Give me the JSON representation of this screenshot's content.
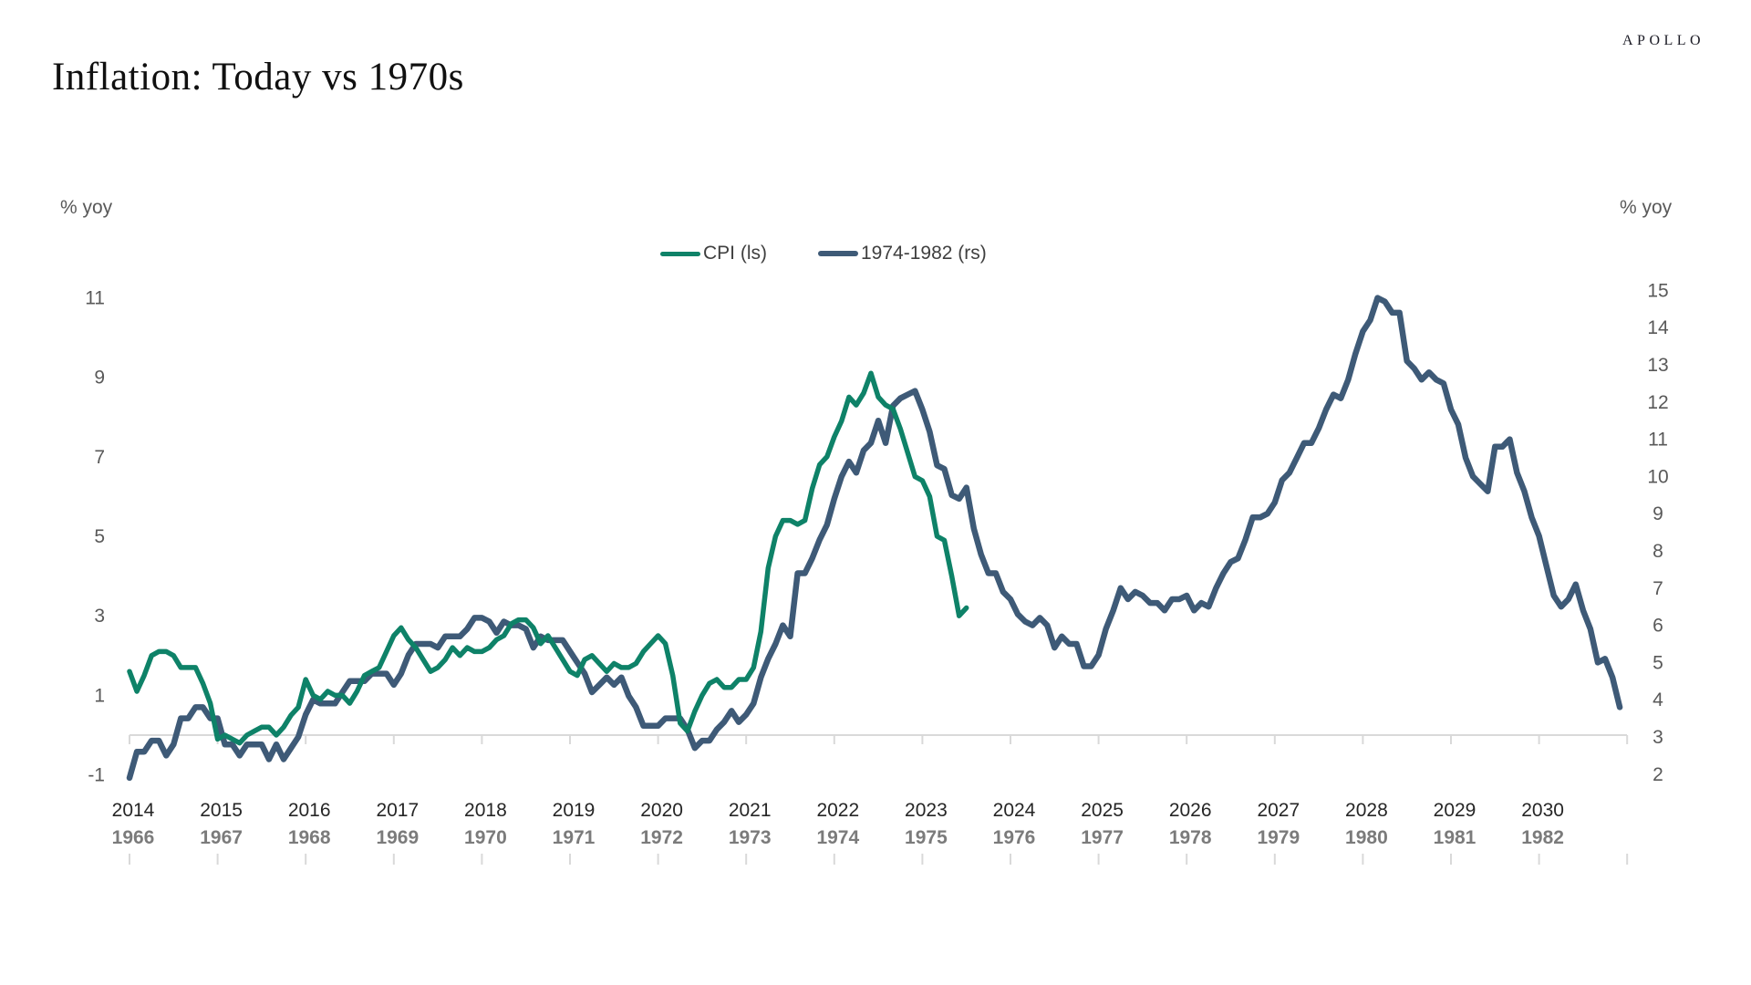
{
  "page": {
    "brand": "APOLLO"
  },
  "chart_data": {
    "type": "line",
    "title": "Inflation: Today vs 1970s",
    "grid": false,
    "legend": {
      "position": "top-center",
      "items": [
        {
          "name": "CPI (ls)",
          "color": "#0e8268"
        },
        {
          "name": "1974-1982 (rs)",
          "color": "#3e5a77"
        }
      ]
    },
    "y_axis_left": {
      "label": "% yoy",
      "range": [
        -1,
        11
      ],
      "tick_labels": [
        "11",
        "9",
        "7",
        "5",
        "3",
        "1",
        "-1"
      ]
    },
    "y_axis_right": {
      "label": "% yoy",
      "range": [
        2,
        15
      ],
      "tick_labels": [
        "15",
        "14",
        "13",
        "12",
        "11",
        "10",
        "9",
        "8",
        "7",
        "6",
        "5",
        "4",
        "3",
        "2"
      ]
    },
    "x_axis": {
      "top_row": [
        "2014",
        "2015",
        "2016",
        "2017",
        "2018",
        "2019",
        "2020",
        "2021",
        "2022",
        "2023",
        "2024",
        "2025",
        "2026",
        "2027",
        "2028",
        "2029",
        "2030"
      ],
      "bottom_row": [
        "1966",
        "1967",
        "1968",
        "1969",
        "1970",
        "1971",
        "1972",
        "1973",
        "1974",
        "1975",
        "1976",
        "1977",
        "1978",
        "1979",
        "1980",
        "1981",
        "1982"
      ]
    },
    "series": [
      {
        "name": "CPI (ls)",
        "axis": "left",
        "start": "2014-01",
        "frequency": "monthly",
        "color": "#0e8268",
        "values": [
          1.6,
          1.1,
          1.5,
          2.0,
          2.1,
          2.1,
          2.0,
          1.7,
          1.7,
          1.7,
          1.3,
          0.8,
          -0.1,
          0.0,
          -0.1,
          -0.2,
          0.0,
          0.1,
          0.2,
          0.2,
          0.0,
          0.2,
          0.5,
          0.7,
          1.4,
          1.0,
          0.9,
          1.1,
          1.0,
          1.0,
          0.8,
          1.1,
          1.5,
          1.6,
          1.7,
          2.1,
          2.5,
          2.7,
          2.4,
          2.2,
          1.9,
          1.6,
          1.7,
          1.9,
          2.2,
          2.0,
          2.2,
          2.1,
          2.1,
          2.2,
          2.4,
          2.5,
          2.8,
          2.9,
          2.9,
          2.7,
          2.3,
          2.5,
          2.2,
          1.9,
          1.6,
          1.5,
          1.9,
          2.0,
          1.8,
          1.6,
          1.8,
          1.7,
          1.7,
          1.8,
          2.1,
          2.3,
          2.5,
          2.3,
          1.5,
          0.3,
          0.1,
          0.6,
          1.0,
          1.3,
          1.4,
          1.2,
          1.2,
          1.4,
          1.4,
          1.7,
          2.6,
          4.2,
          5.0,
          5.4,
          5.4,
          5.3,
          5.4,
          6.2,
          6.8,
          7.0,
          7.5,
          7.9,
          8.5,
          8.3,
          8.6,
          9.1,
          8.5,
          8.3,
          8.2,
          7.7,
          7.1,
          6.5,
          6.4,
          6.0,
          5.0,
          4.9,
          4.0,
          3.0,
          3.2
        ]
      },
      {
        "name": "1974-1982 (rs)",
        "axis": "right",
        "start": "1966-01",
        "frequency": "monthly",
        "color": "#3e5a77",
        "values": [
          1.9,
          2.6,
          2.6,
          2.9,
          2.9,
          2.5,
          2.8,
          3.5,
          3.5,
          3.8,
          3.8,
          3.5,
          3.5,
          2.8,
          2.8,
          2.5,
          2.8,
          2.8,
          2.8,
          2.4,
          2.8,
          2.4,
          2.7,
          3.0,
          3.6,
          4.0,
          3.9,
          3.9,
          3.9,
          4.2,
          4.5,
          4.5,
          4.5,
          4.7,
          4.7,
          4.7,
          4.4,
          4.7,
          5.2,
          5.5,
          5.5,
          5.5,
          5.4,
          5.7,
          5.7,
          5.7,
          5.9,
          6.2,
          6.2,
          6.1,
          5.8,
          6.1,
          6.0,
          6.0,
          5.9,
          5.4,
          5.7,
          5.6,
          5.6,
          5.6,
          5.3,
          5.0,
          4.7,
          4.2,
          4.4,
          4.6,
          4.4,
          4.6,
          4.1,
          3.8,
          3.3,
          3.3,
          3.3,
          3.5,
          3.5,
          3.5,
          3.2,
          2.7,
          2.9,
          2.9,
          3.2,
          3.4,
          3.7,
          3.4,
          3.6,
          3.9,
          4.6,
          5.1,
          5.5,
          6.0,
          5.7,
          7.4,
          7.4,
          7.8,
          8.3,
          8.7,
          9.4,
          10.0,
          10.4,
          10.1,
          10.7,
          10.9,
          11.5,
          10.9,
          11.9,
          12.1,
          12.2,
          12.3,
          11.8,
          11.2,
          10.3,
          10.2,
          9.5,
          9.4,
          9.7,
          8.6,
          7.9,
          7.4,
          7.4,
          6.9,
          6.7,
          6.3,
          6.1,
          6.0,
          6.2,
          6.0,
          5.4,
          5.7,
          5.5,
          5.5,
          4.9,
          4.9,
          5.2,
          5.9,
          6.4,
          7.0,
          6.7,
          6.9,
          6.8,
          6.6,
          6.6,
          6.4,
          6.7,
          6.7,
          6.8,
          6.4,
          6.6,
          6.5,
          7.0,
          7.4,
          7.7,
          7.8,
          8.3,
          8.9,
          8.9,
          9.0,
          9.3,
          9.9,
          10.1,
          10.5,
          10.9,
          10.9,
          11.3,
          11.8,
          12.2,
          12.1,
          12.6,
          13.3,
          13.9,
          14.2,
          14.8,
          14.7,
          14.4,
          14.4,
          13.1,
          12.9,
          12.6,
          12.8,
          12.6,
          12.5,
          11.8,
          11.4,
          10.5,
          10.0,
          9.8,
          9.6,
          10.8,
          10.8,
          11.0,
          10.1,
          9.6,
          8.9,
          8.4,
          7.6,
          6.8,
          6.5,
          6.7,
          7.1,
          6.4,
          5.9,
          5.0,
          5.1,
          4.6,
          3.8
        ]
      }
    ]
  }
}
